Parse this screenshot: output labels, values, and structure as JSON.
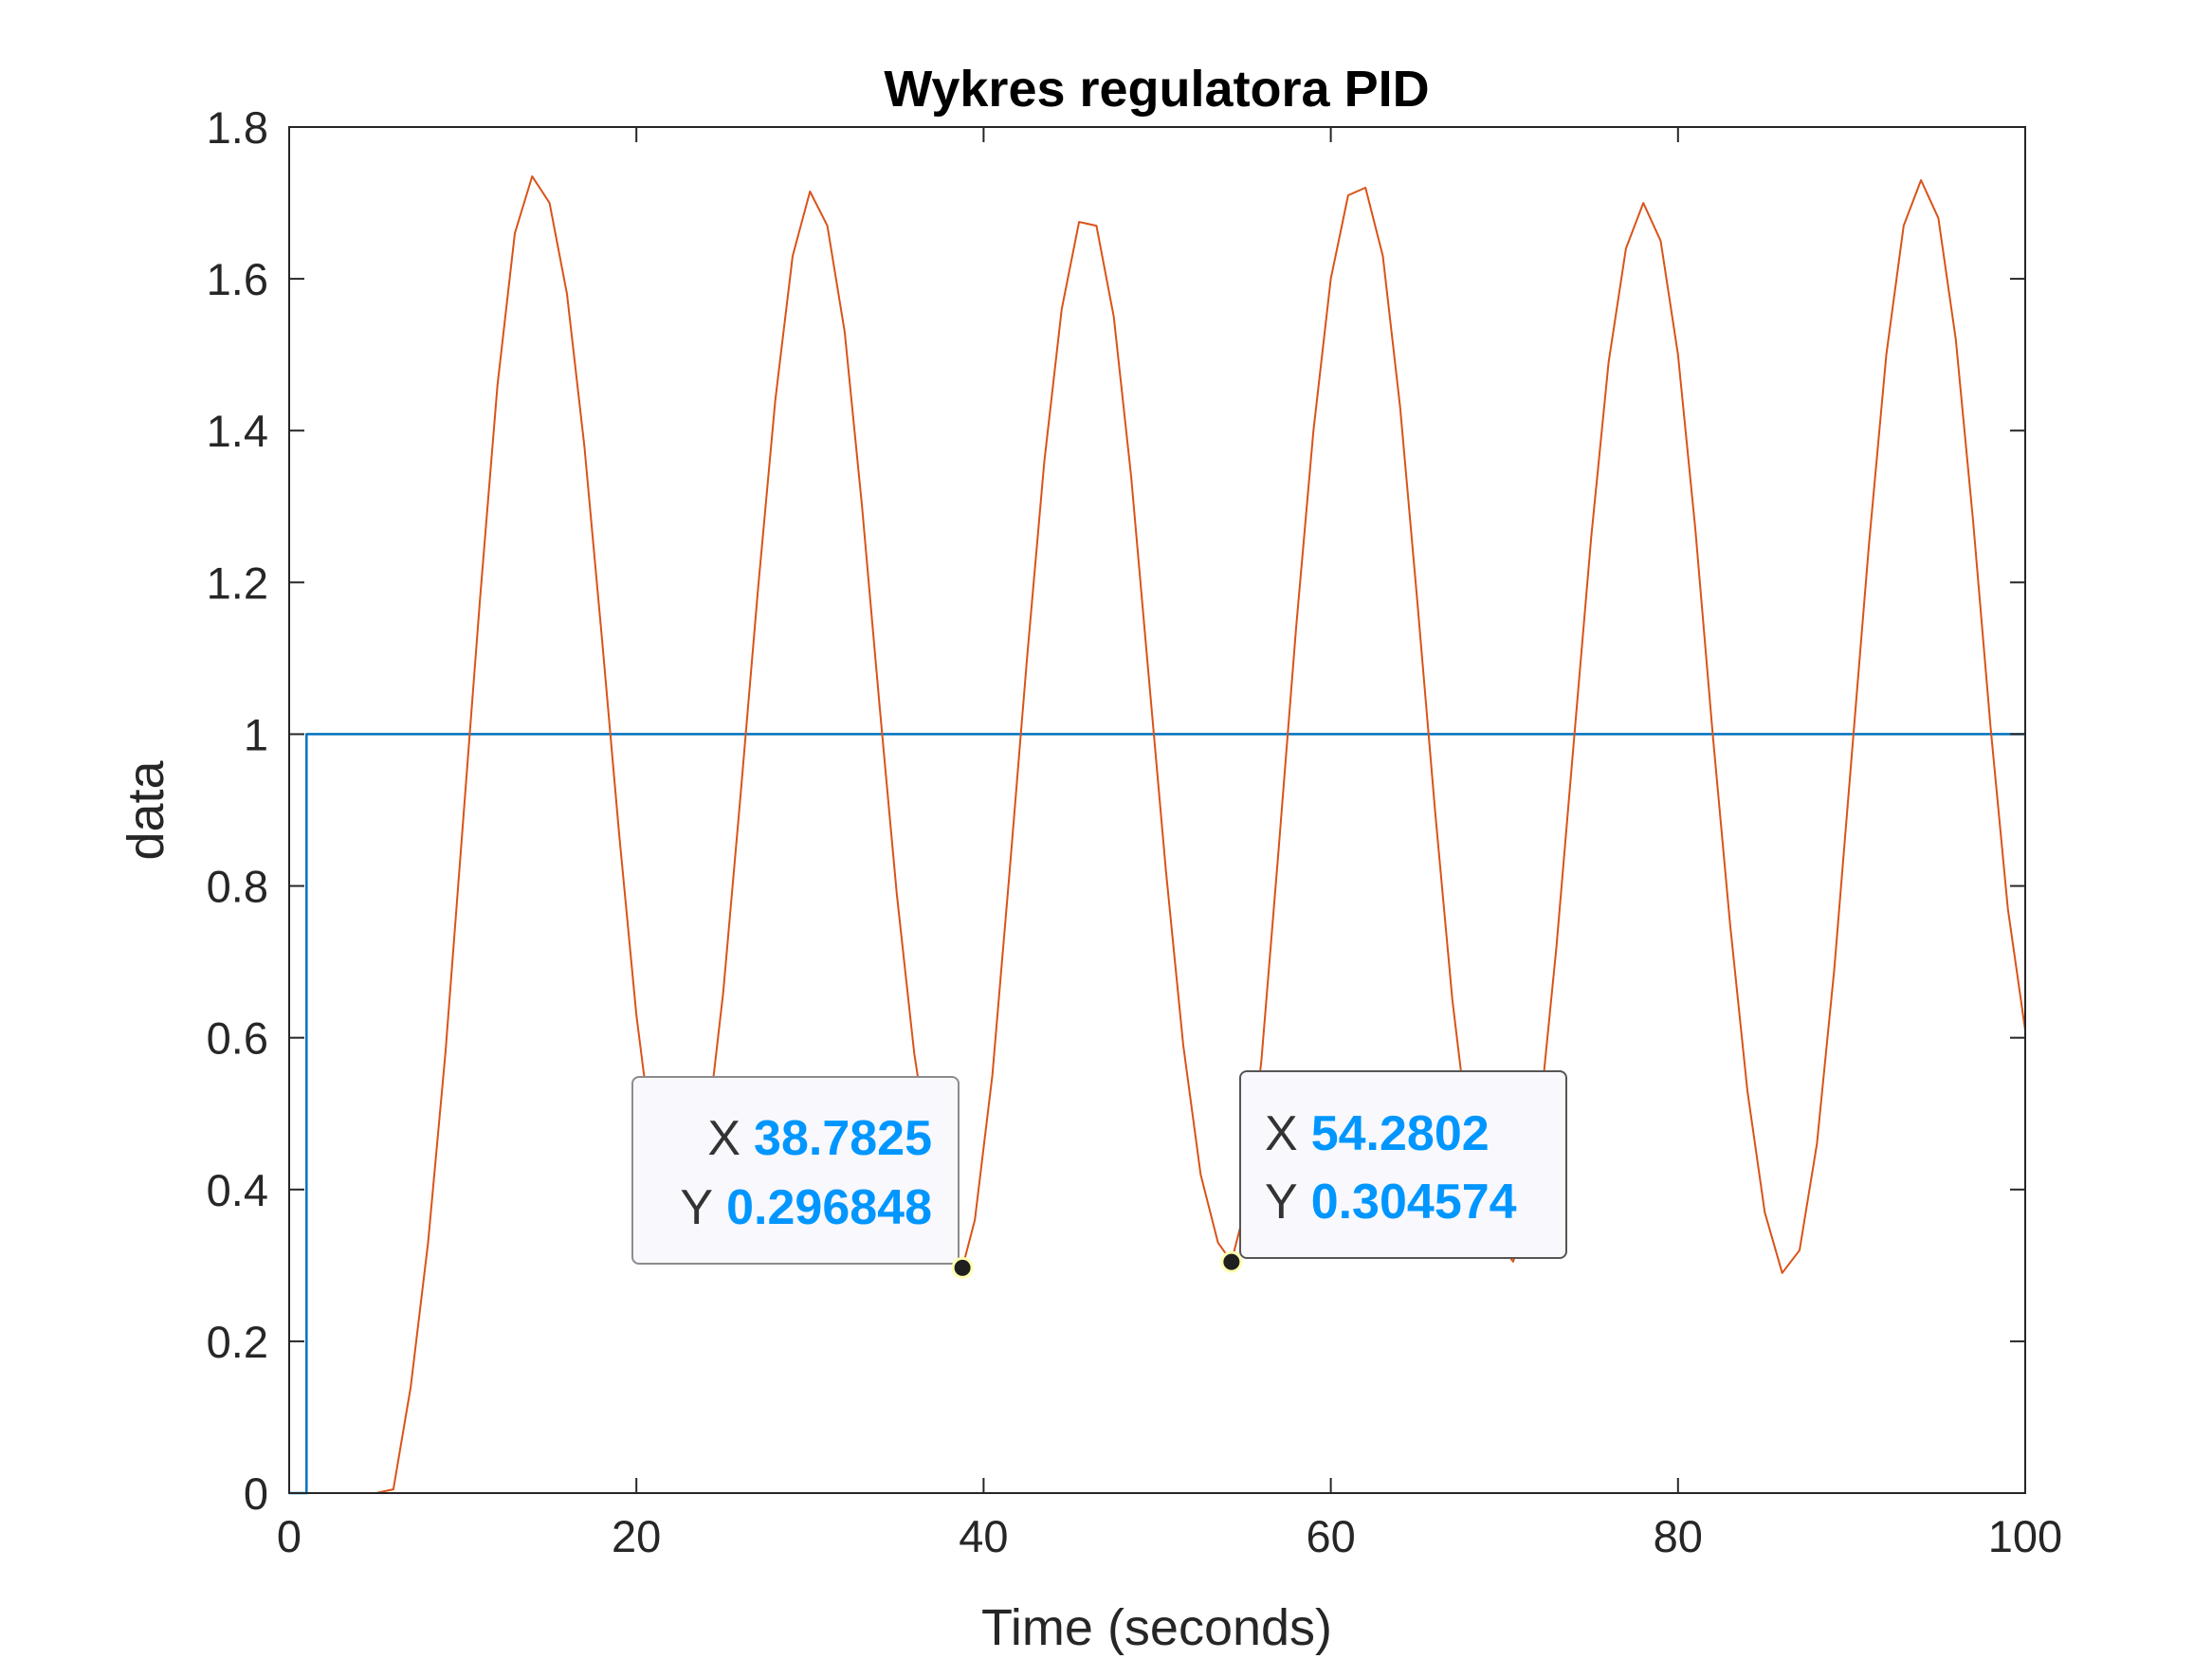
{
  "chart_data": {
    "type": "line",
    "title": "Wykres regulatora PID",
    "xlabel": "Time (seconds)",
    "ylabel": "data",
    "xlim": [
      0,
      100
    ],
    "ylim": [
      0,
      1.8
    ],
    "x_ticks": [
      0,
      20,
      40,
      60,
      80,
      100
    ],
    "y_ticks": [
      0,
      0.2,
      0.4,
      0.6,
      0.8,
      1,
      1.2,
      1.4,
      1.6,
      1.8
    ],
    "x_tick_labels": [
      "0",
      "20",
      "40",
      "60",
      "80",
      "100"
    ],
    "y_tick_labels": [
      "0",
      "0.2",
      "0.4",
      "0.6",
      "0.8",
      "1",
      "1.2",
      "1.4",
      "1.6",
      "1.8"
    ],
    "grid": false,
    "box": true,
    "series": [
      {
        "color": "#0072bd",
        "x": [
          0,
          1,
          1,
          100
        ],
        "y": [
          0,
          0,
          1,
          1
        ]
      },
      {
        "color": "#d95319",
        "x": [
          0,
          3,
          5,
          6,
          7,
          8,
          9,
          10,
          11,
          12,
          13,
          14,
          15,
          16,
          17,
          18,
          19,
          20,
          21,
          22,
          23,
          24,
          25,
          26,
          27,
          28,
          29,
          30,
          31,
          32,
          33,
          34,
          35,
          36,
          37,
          38,
          38.78,
          39.5,
          40.5,
          41.5,
          42.5,
          43.5,
          44.5,
          45.5,
          46.5,
          47.5,
          48.5,
          49.5,
          50.5,
          51.5,
          52.5,
          53.5,
          54.28,
          55,
          56,
          57,
          58,
          59,
          60,
          61,
          62,
          63,
          64,
          65,
          66,
          67,
          68,
          69,
          70,
          70.5,
          71,
          72,
          73,
          74,
          75,
          76,
          77,
          78,
          79,
          80,
          81,
          82,
          83,
          84,
          85,
          86,
          87,
          88,
          89,
          90,
          91,
          92,
          93,
          94,
          95,
          96,
          97,
          98,
          99,
          100
        ],
        "y": [
          0,
          0,
          0,
          0.005,
          0.14,
          0.33,
          0.58,
          0.88,
          1.18,
          1.46,
          1.66,
          1.735,
          1.7,
          1.58,
          1.38,
          1.13,
          0.87,
          0.63,
          0.45,
          0.34,
          0.35,
          0.46,
          0.66,
          0.92,
          1.19,
          1.44,
          1.63,
          1.715,
          1.67,
          1.53,
          1.3,
          1.04,
          0.79,
          0.58,
          0.43,
          0.33,
          0.297,
          0.36,
          0.55,
          0.82,
          1.1,
          1.36,
          1.56,
          1.675,
          1.67,
          1.55,
          1.34,
          1.08,
          0.82,
          0.59,
          0.42,
          0.33,
          0.305,
          0.37,
          0.57,
          0.85,
          1.14,
          1.4,
          1.6,
          1.71,
          1.72,
          1.63,
          1.43,
          1.17,
          0.9,
          0.65,
          0.46,
          0.34,
          0.32,
          0.305,
          0.34,
          0.49,
          0.72,
          0.99,
          1.26,
          1.49,
          1.64,
          1.7,
          1.65,
          1.5,
          1.27,
          1.0,
          0.75,
          0.53,
          0.37,
          0.29,
          0.32,
          0.46,
          0.69,
          0.97,
          1.25,
          1.5,
          1.67,
          1.73,
          1.68,
          1.52,
          1.28,
          1.01,
          0.77,
          0.61
        ]
      }
    ]
  },
  "datatips": [
    {
      "x_label": "X",
      "y_label": "Y",
      "x_value": "38.7825",
      "y_value": "0.296848",
      "point": {
        "x": 38.7825,
        "y": 0.296848
      }
    },
    {
      "x_label": "X",
      "y_label": "Y",
      "x_value": "54.2802",
      "y_value": "0.304574",
      "point": {
        "x": 54.2802,
        "y": 0.304574
      }
    }
  ]
}
